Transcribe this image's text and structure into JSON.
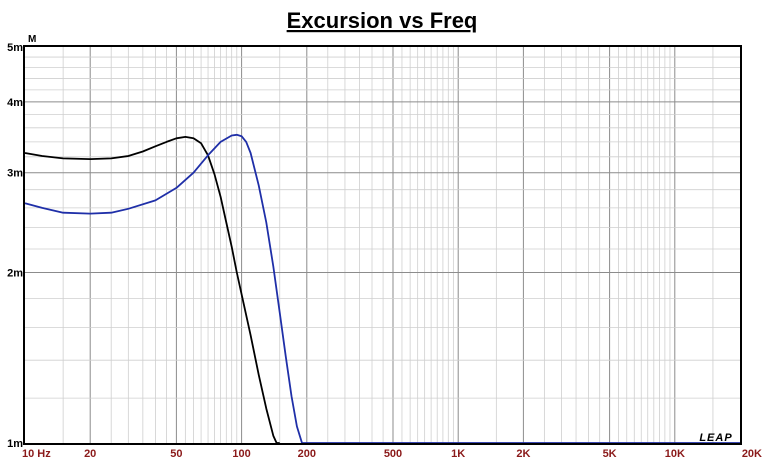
{
  "chart_data": {
    "type": "line",
    "title": "Excursion vs Freq",
    "y_unit_label": "M",
    "xscale": "log",
    "yscale": "log",
    "xlim": [
      10,
      20000
    ],
    "ylim": [
      0.001,
      0.005
    ],
    "grid": true,
    "x_tick_values": [
      10,
      20,
      50,
      100,
      200,
      500,
      1000,
      2000,
      5000,
      10000,
      20000
    ],
    "x_tick_labels": [
      "10 Hz",
      "20",
      "50",
      "100",
      "200",
      "500",
      "1K",
      "2K",
      "5K",
      "10K",
      "20K"
    ],
    "y_tick_values": [
      0.001,
      0.002,
      0.003,
      0.004,
      0.005
    ],
    "y_tick_labels": [
      "1m",
      "2m",
      "3m",
      "4m",
      "5m"
    ],
    "logo_text": "LEAP",
    "series": [
      {
        "color": "#000000",
        "x": [
          10,
          12,
          15,
          20,
          25,
          30,
          35,
          40,
          45,
          50,
          55,
          60,
          65,
          70,
          75,
          80,
          85,
          90,
          95,
          100,
          110,
          120,
          130,
          140,
          145,
          150
        ],
        "y": [
          0.00325,
          0.00321,
          0.00318,
          0.00317,
          0.00318,
          0.00321,
          0.00327,
          0.00334,
          0.0034,
          0.00345,
          0.00347,
          0.00345,
          0.00338,
          0.00322,
          0.00298,
          0.00272,
          0.00245,
          0.00222,
          0.002,
          0.00183,
          0.00155,
          0.00132,
          0.00115,
          0.00103,
          0.00099,
          0.00096
        ]
      },
      {
        "color": "#1f2fa8",
        "x": [
          10,
          12,
          15,
          20,
          25,
          30,
          40,
          50,
          60,
          70,
          80,
          90,
          95,
          100,
          105,
          110,
          120,
          130,
          140,
          150,
          160,
          170,
          180,
          190,
          20000
        ],
        "y": [
          0.00265,
          0.0026,
          0.00255,
          0.00254,
          0.00255,
          0.00259,
          0.00268,
          0.00282,
          0.003,
          0.00322,
          0.0034,
          0.00349,
          0.0035,
          0.00348,
          0.0034,
          0.00325,
          0.00285,
          0.00245,
          0.00205,
          0.0017,
          0.00142,
          0.00121,
          0.00107,
          0.001,
          0.001
        ]
      }
    ]
  }
}
